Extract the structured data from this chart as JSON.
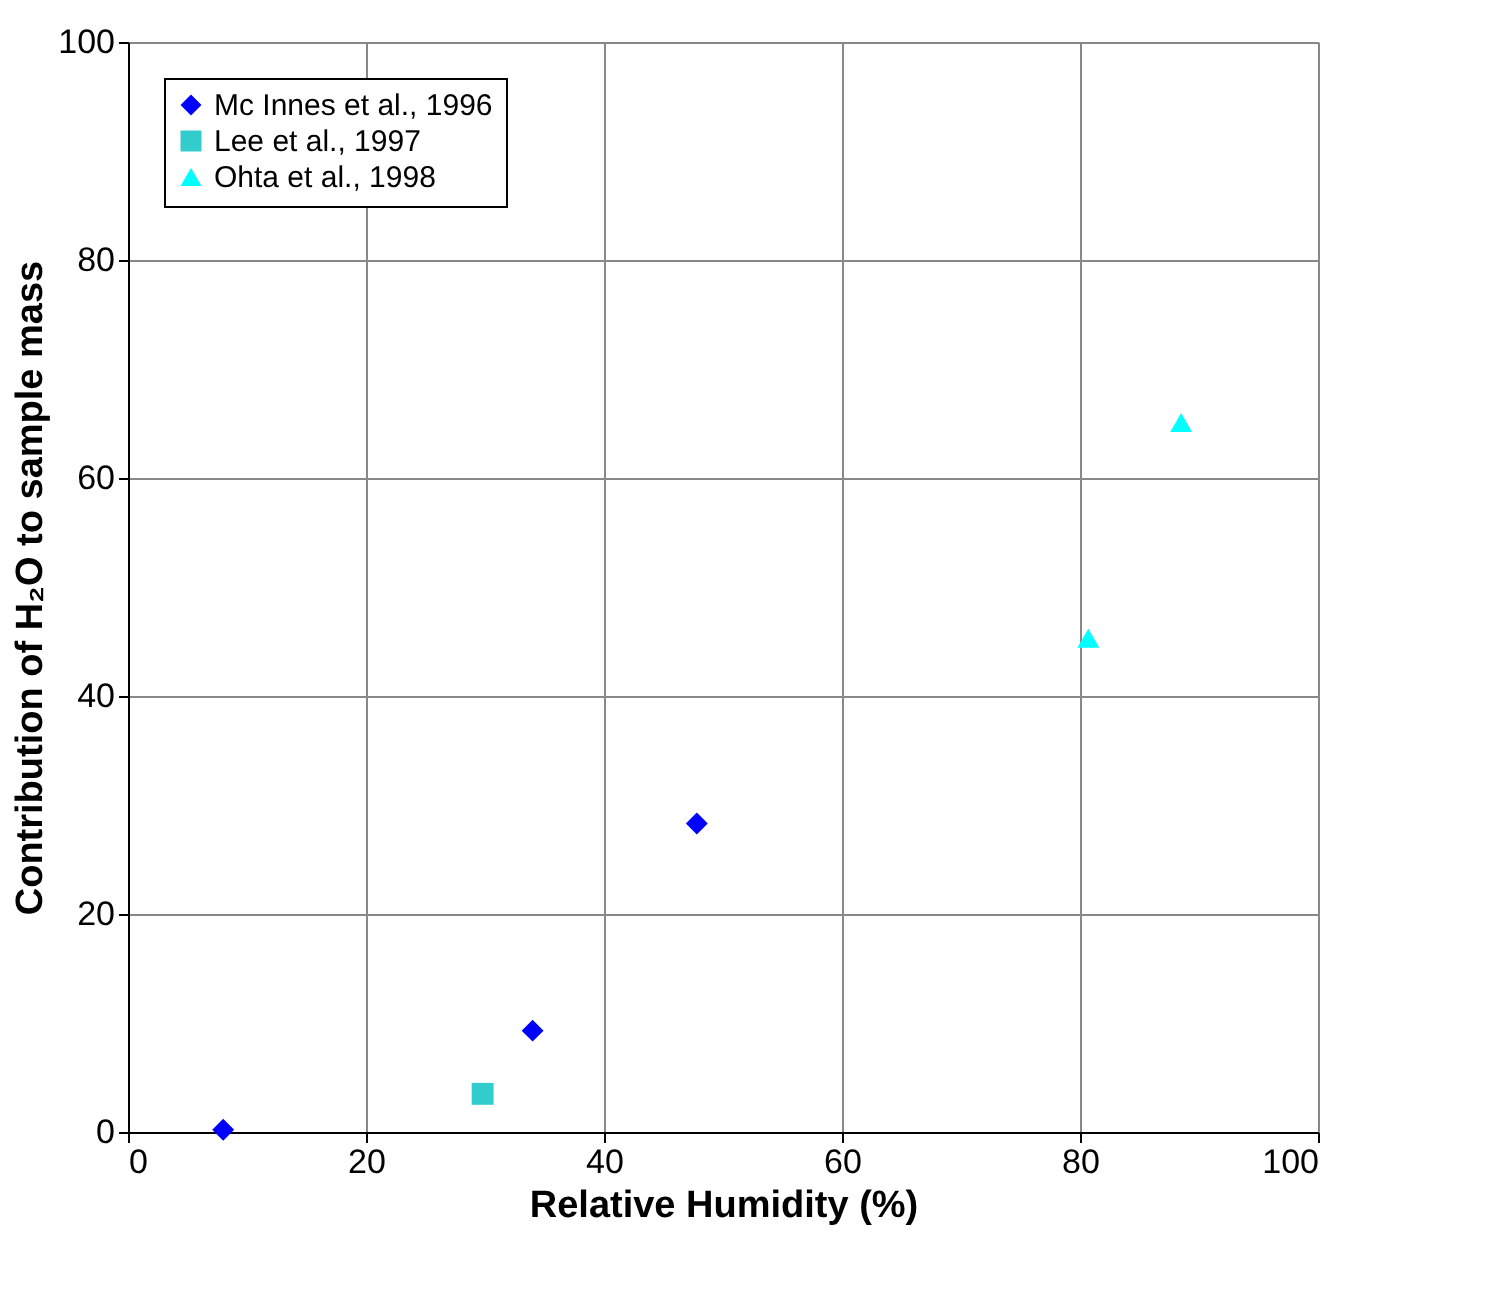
{
  "chart_data": {
    "type": "scatter",
    "xlabel": "Relative Humidity  (%)",
    "ylabel": "Contribution of H₂O to sample mass",
    "xlim": [
      0,
      100
    ],
    "xticks": [
      0,
      20,
      40,
      60,
      80,
      100
    ],
    "ylim": [
      0,
      100
    ],
    "yticks": [
      0,
      20,
      40,
      60,
      80,
      100
    ],
    "grid": true,
    "legend": "top left",
    "series": [
      {
        "name": "Mc Innes et al., 1996",
        "color": "#0000ff",
        "marker": "diamond",
        "x": [
          8,
          34,
          47.8
        ],
        "values": [
          0.2,
          9.3,
          28.3
        ]
      },
      {
        "name": "Lee et al., 1997",
        "color": "#33cccc",
        "marker": "square",
        "x": [
          29.8
        ],
        "values": [
          3.5
        ]
      },
      {
        "name": "Ohta et al., 1998",
        "color": "#00ffff",
        "marker": "triangle",
        "x": [
          80.7,
          88.5
        ],
        "values": [
          45.3,
          65.1
        ]
      }
    ]
  }
}
